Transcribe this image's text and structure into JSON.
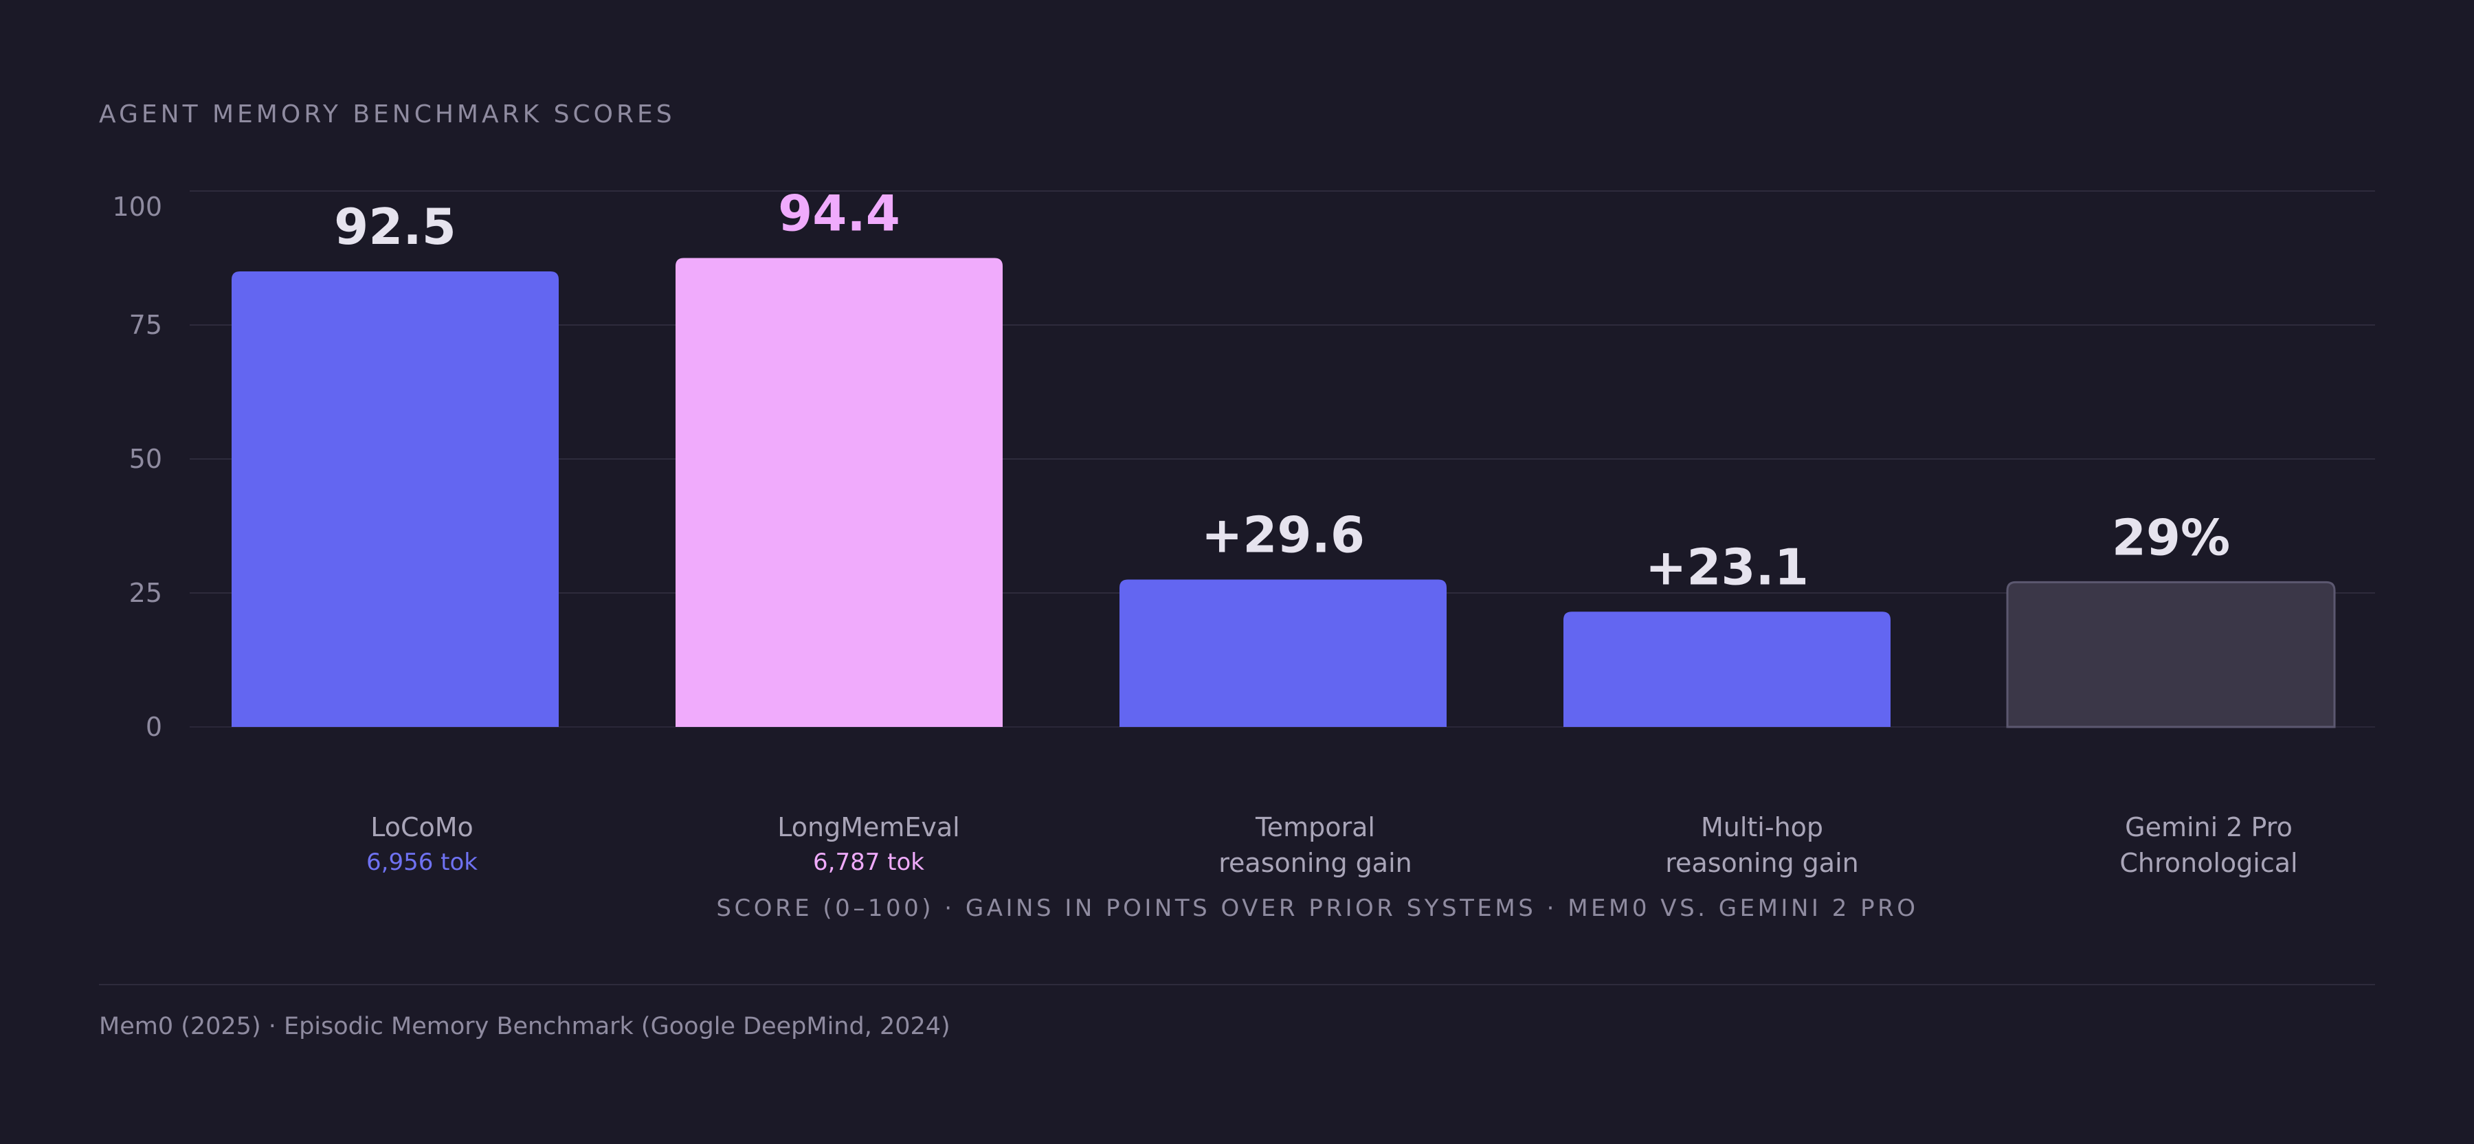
{
  "title": "AGENT MEMORY BENCHMARK SCORES",
  "chart_data": {
    "type": "bar",
    "ylim": [
      0,
      100
    ],
    "yticks": [
      0,
      25,
      50,
      75,
      100
    ],
    "grid": true,
    "bars": [
      {
        "label_lines": [
          "LoCoMo"
        ],
        "sublabel": "6,956 tok",
        "value": 92.5,
        "display_label": "92.5",
        "bar_value": 85,
        "color": "#6366f1",
        "label_color": "#e6e3ee",
        "sub_color": "#6f72f2",
        "style": "solid"
      },
      {
        "label_lines": [
          "LongMemEval"
        ],
        "sublabel": "6,787 tok",
        "value": 94.4,
        "display_label": "94.4",
        "bar_value": 87.5,
        "color": "#f0abfc",
        "label_color": "#f0abfc",
        "sub_color": "#f0abfc",
        "style": "solid"
      },
      {
        "label_lines": [
          "Temporal",
          "reasoning gain"
        ],
        "sublabel": "",
        "value": 29.6,
        "display_label": "+29.6",
        "bar_value": 27.5,
        "color": "#6366f1",
        "label_color": "#e6e3ee",
        "sub_color": "",
        "style": "solid"
      },
      {
        "label_lines": [
          "Multi-hop",
          "reasoning gain"
        ],
        "sublabel": "",
        "value": 23.1,
        "display_label": "+23.1",
        "bar_value": 21.5,
        "color": "#6366f1",
        "label_color": "#e6e3ee",
        "sub_color": "",
        "style": "solid"
      },
      {
        "label_lines": [
          "Gemini 2 Pro",
          "Chronological"
        ],
        "sublabel": "",
        "value": 29,
        "display_label": "29%",
        "bar_value": 27,
        "color": "#3b3748",
        "label_color": "#e6e3ee",
        "sub_color": "",
        "style": "muted"
      }
    ]
  },
  "caption": "SCORE (0–100) · GAINS IN POINTS OVER PRIOR SYSTEMS · MEM0 VS. GEMINI 2 PRO",
  "footer": "Mem0 (2025) · Episodic Memory Benchmark (Google DeepMind, 2024)"
}
